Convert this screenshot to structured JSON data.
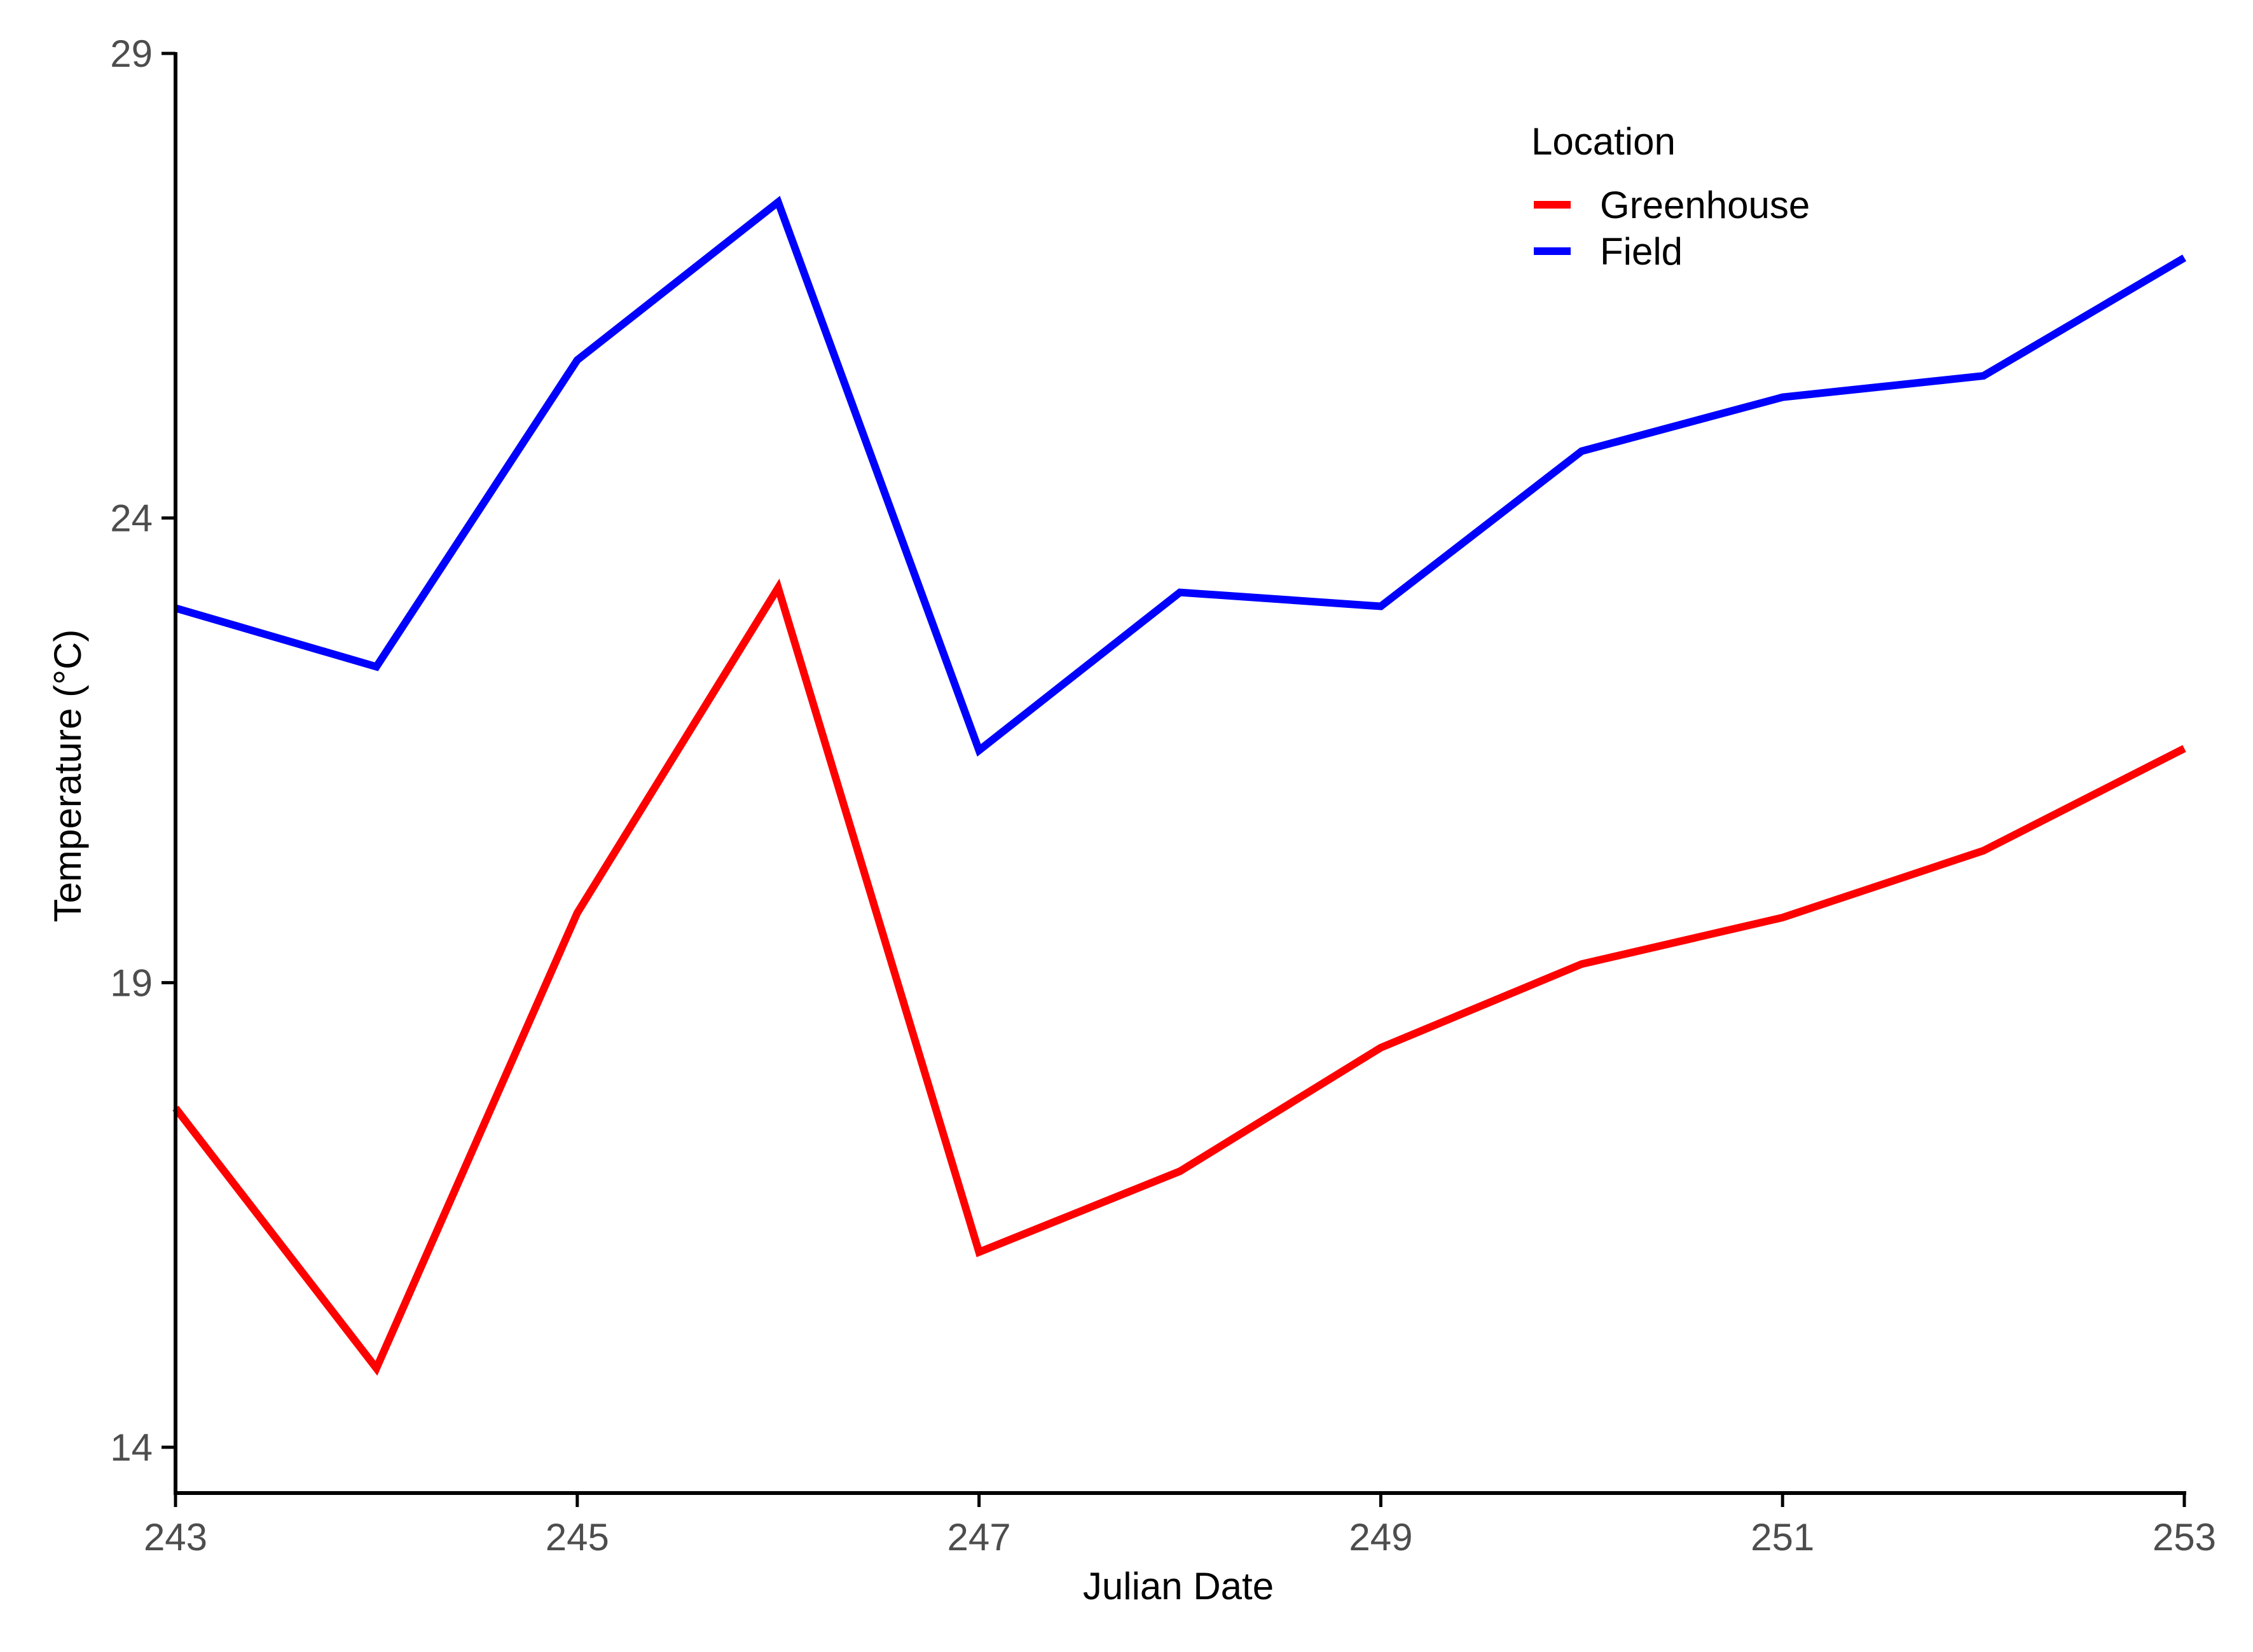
{
  "chart_data": {
    "type": "line",
    "xlabel": "Julian Date",
    "ylabel": "Temperature (°C)",
    "xlim": [
      243,
      253
    ],
    "ylim": [
      13.5,
      29
    ],
    "x_ticks": [
      243,
      245,
      247,
      249,
      251,
      253
    ],
    "y_ticks": [
      14,
      19,
      24,
      29
    ],
    "x": [
      243,
      244,
      245,
      246,
      247,
      248,
      249,
      250,
      251,
      252,
      253
    ],
    "grid": false,
    "legend": {
      "title": "Location",
      "placement": "top-right"
    },
    "series": [
      {
        "name": "Greenhouse",
        "color": "#ff0000",
        "values": [
          17.65,
          14.85,
          19.75,
          23.25,
          16.1,
          16.97,
          18.3,
          19.2,
          19.7,
          20.42,
          21.52
        ]
      },
      {
        "name": "Field",
        "color": "#0000ff",
        "values": [
          23.03,
          22.4,
          25.7,
          27.4,
          21.5,
          23.2,
          23.05,
          24.72,
          25.3,
          25.53,
          26.8
        ]
      }
    ]
  }
}
